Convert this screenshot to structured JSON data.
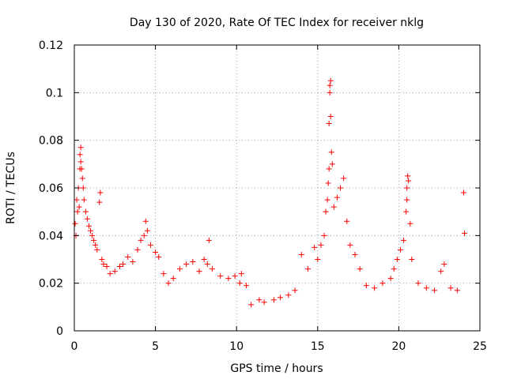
{
  "chart_data": {
    "type": "scatter",
    "title": "Day 130 of 2020, Rate Of TEC Index for receiver nklg",
    "xlabel": "GPS time / hours",
    "ylabel": "ROTI / TECUs",
    "xlim": [
      0,
      25
    ],
    "ylim": [
      0,
      0.12
    ],
    "x_ticks": [
      0,
      5,
      10,
      15,
      20,
      25
    ],
    "x_tick_labels": [
      "0",
      "5",
      "10",
      "15",
      "20",
      "25"
    ],
    "y_ticks": [
      0,
      0.02,
      0.04,
      0.06,
      0.08,
      0.1,
      0.12
    ],
    "y_tick_labels": [
      "0",
      "0.02",
      "0.04",
      "0.06",
      "0.08",
      "0.1",
      "0.12"
    ],
    "grid": true,
    "marker": "+",
    "marker_color": "#ff0000",
    "series": [
      {
        "name": "ROTI",
        "points": [
          [
            0.05,
            0.045
          ],
          [
            0.1,
            0.04
          ],
          [
            0.15,
            0.055
          ],
          [
            0.2,
            0.05
          ],
          [
            0.25,
            0.06
          ],
          [
            0.3,
            0.052
          ],
          [
            0.35,
            0.068
          ],
          [
            0.35,
            0.074
          ],
          [
            0.4,
            0.077
          ],
          [
            0.4,
            0.071
          ],
          [
            0.45,
            0.068
          ],
          [
            0.5,
            0.064
          ],
          [
            0.55,
            0.06
          ],
          [
            0.6,
            0.055
          ],
          [
            0.7,
            0.05
          ],
          [
            0.8,
            0.047
          ],
          [
            0.9,
            0.044
          ],
          [
            1.0,
            0.042
          ],
          [
            1.1,
            0.04
          ],
          [
            1.2,
            0.038
          ],
          [
            1.3,
            0.036
          ],
          [
            1.4,
            0.034
          ],
          [
            1.6,
            0.058
          ],
          [
            1.55,
            0.054
          ],
          [
            1.7,
            0.03
          ],
          [
            1.8,
            0.028
          ],
          [
            2.0,
            0.027
          ],
          [
            2.2,
            0.024
          ],
          [
            2.5,
            0.025
          ],
          [
            2.8,
            0.027
          ],
          [
            3.0,
            0.028
          ],
          [
            3.3,
            0.031
          ],
          [
            3.6,
            0.029
          ],
          [
            3.9,
            0.034
          ],
          [
            4.1,
            0.038
          ],
          [
            4.3,
            0.04
          ],
          [
            4.4,
            0.046
          ],
          [
            4.5,
            0.042
          ],
          [
            4.7,
            0.036
          ],
          [
            5.0,
            0.033
          ],
          [
            5.2,
            0.031
          ],
          [
            5.5,
            0.024
          ],
          [
            5.8,
            0.02
          ],
          [
            6.1,
            0.022
          ],
          [
            6.5,
            0.026
          ],
          [
            6.9,
            0.028
          ],
          [
            7.3,
            0.029
          ],
          [
            7.7,
            0.025
          ],
          [
            8.0,
            0.03
          ],
          [
            8.2,
            0.028
          ],
          [
            8.3,
            0.038
          ],
          [
            8.5,
            0.026
          ],
          [
            9.0,
            0.023
          ],
          [
            9.5,
            0.022
          ],
          [
            9.9,
            0.023
          ],
          [
            10.2,
            0.02
          ],
          [
            10.3,
            0.024
          ],
          [
            10.6,
            0.019
          ],
          [
            10.9,
            0.011
          ],
          [
            11.4,
            0.013
          ],
          [
            11.7,
            0.012
          ],
          [
            12.3,
            0.013
          ],
          [
            12.7,
            0.014
          ],
          [
            13.2,
            0.015
          ],
          [
            13.6,
            0.017
          ],
          [
            14.0,
            0.032
          ],
          [
            14.4,
            0.026
          ],
          [
            14.8,
            0.035
          ],
          [
            15.0,
            0.03
          ],
          [
            15.2,
            0.036
          ],
          [
            15.4,
            0.04
          ],
          [
            15.5,
            0.05
          ],
          [
            15.6,
            0.055
          ],
          [
            15.65,
            0.062
          ],
          [
            15.7,
            0.068
          ],
          [
            15.7,
            0.087
          ],
          [
            15.75,
            0.1
          ],
          [
            15.75,
            0.103
          ],
          [
            15.8,
            0.105
          ],
          [
            15.8,
            0.09
          ],
          [
            15.85,
            0.075
          ],
          [
            15.9,
            0.07
          ],
          [
            16.0,
            0.052
          ],
          [
            16.2,
            0.056
          ],
          [
            16.4,
            0.06
          ],
          [
            16.6,
            0.064
          ],
          [
            16.8,
            0.046
          ],
          [
            17.0,
            0.036
          ],
          [
            17.3,
            0.032
          ],
          [
            17.6,
            0.026
          ],
          [
            18.0,
            0.019
          ],
          [
            18.5,
            0.018
          ],
          [
            19.0,
            0.02
          ],
          [
            19.5,
            0.022
          ],
          [
            19.7,
            0.026
          ],
          [
            19.9,
            0.03
          ],
          [
            20.1,
            0.034
          ],
          [
            20.3,
            0.038
          ],
          [
            20.45,
            0.05
          ],
          [
            20.5,
            0.055
          ],
          [
            20.5,
            0.06
          ],
          [
            20.55,
            0.065
          ],
          [
            20.6,
            0.063
          ],
          [
            20.7,
            0.045
          ],
          [
            20.8,
            0.03
          ],
          [
            21.2,
            0.02
          ],
          [
            21.7,
            0.018
          ],
          [
            22.2,
            0.017
          ],
          [
            22.6,
            0.025
          ],
          [
            22.8,
            0.028
          ],
          [
            23.2,
            0.018
          ],
          [
            23.6,
            0.017
          ],
          [
            24.0,
            0.058
          ],
          [
            24.05,
            0.041
          ]
        ]
      }
    ]
  }
}
